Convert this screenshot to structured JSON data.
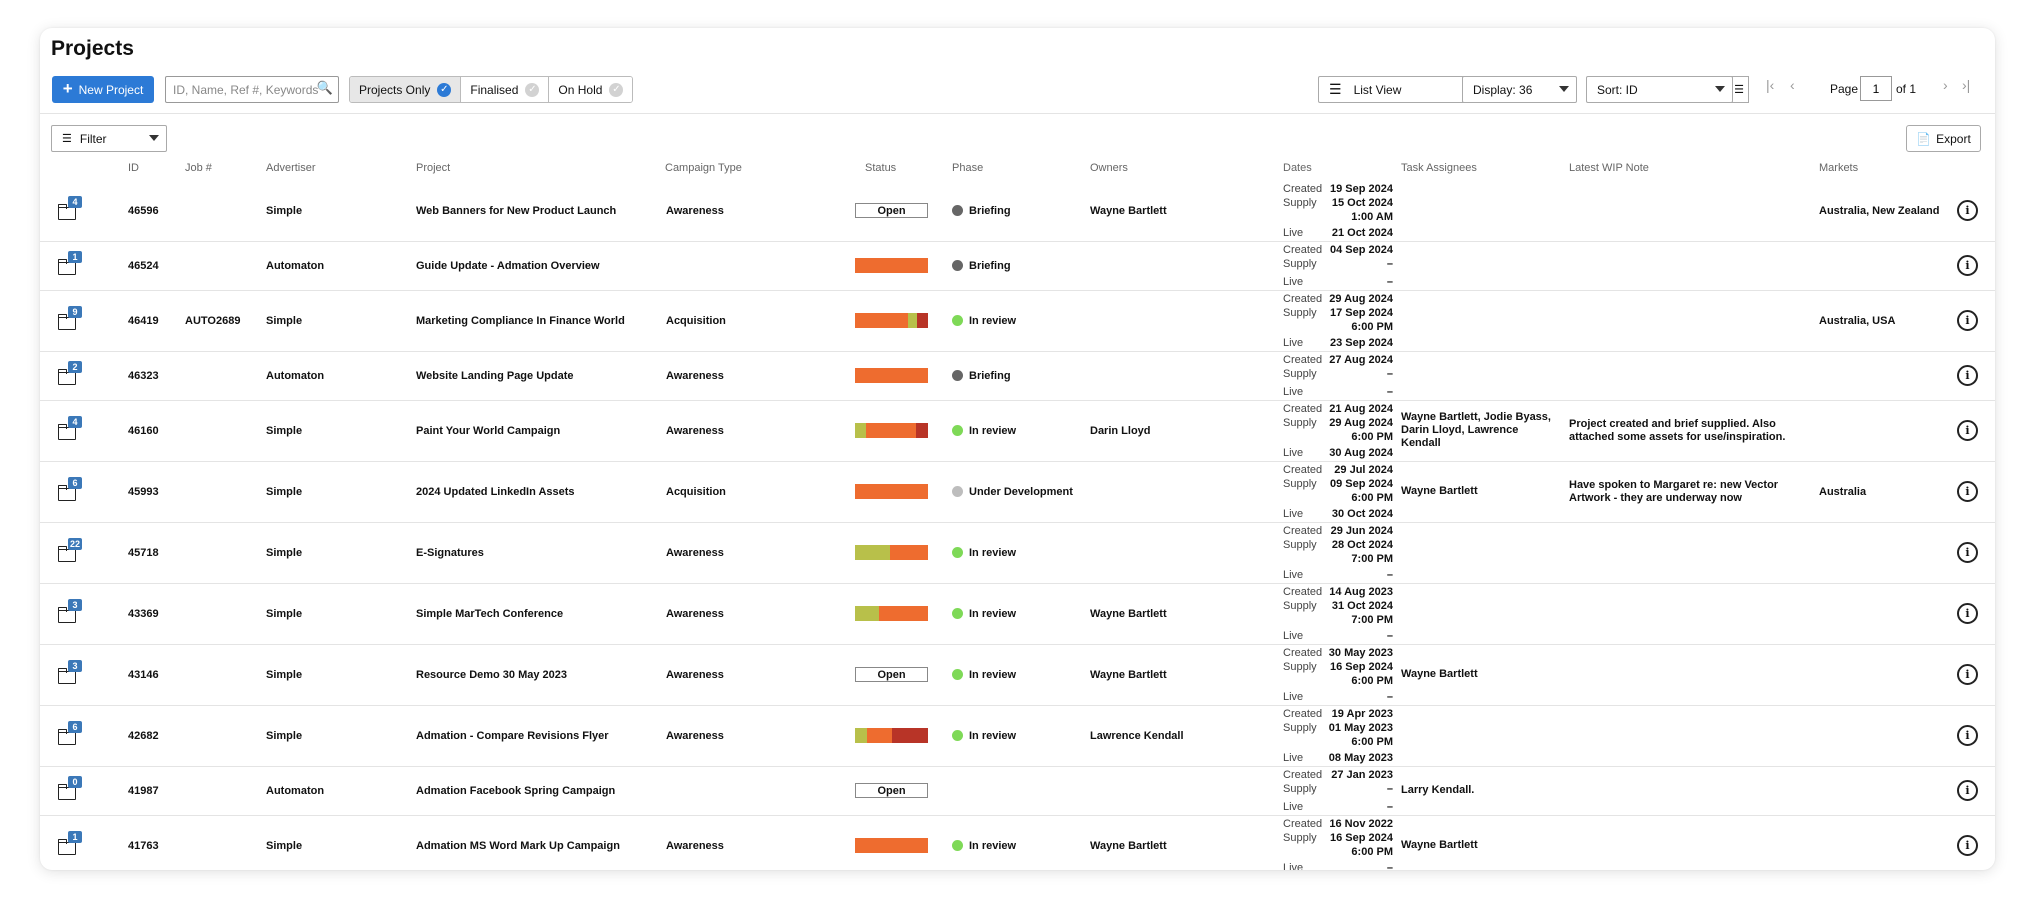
{
  "header": {
    "title": "Projects"
  },
  "toolbar": {
    "new_project_label": "New Project",
    "search_placeholder": "ID, Name, Ref #, Keywords",
    "filters": [
      {
        "label": "Projects Only",
        "active": true
      },
      {
        "label": "Finalised",
        "active": false
      },
      {
        "label": "On Hold",
        "active": false
      }
    ],
    "view_select": "List View",
    "display_select": "Display: 36",
    "sort_select": "Sort: ID",
    "page_label": "Page",
    "page_value": "1",
    "page_of": "of 1",
    "filter_label": "Filter",
    "export_label": "Export"
  },
  "columns": {
    "id": "ID",
    "job": "Job #",
    "advertiser": "Advertiser",
    "project": "Project",
    "campaign": "Campaign Type",
    "status": "Status",
    "phase": "Phase",
    "owners": "Owners",
    "dates": "Dates",
    "tasks": "Task Assignees",
    "wip": "Latest WIP Note",
    "markets": "Markets"
  },
  "date_labels": {
    "created": "Created",
    "supply": "Supply",
    "live": "Live"
  },
  "colors": {
    "accent": "#2c7ad6",
    "orange": "#ee6c2f",
    "olive": "#b8c04a",
    "red": "#b83427",
    "green": "#7ed957",
    "grey_dot": "#666666",
    "light_dot": "#bdbdbd"
  },
  "rows": [
    {
      "count": "4",
      "id": "46596",
      "job": "",
      "advertiser": "Simple",
      "project": "Web Banners for New Product Launch",
      "campaign": "Awareness",
      "status": {
        "type": "open",
        "label": "Open"
      },
      "phase": {
        "label": "Briefing",
        "dot": "grey"
      },
      "owners": "Wayne Bartlett",
      "created": "19 Sep 2024",
      "supply": "15 Oct 2024",
      "supply_time": "1:00 AM",
      "live": "21 Oct 2024",
      "tasks": "",
      "wip": "",
      "markets": "Australia, New Zealand"
    },
    {
      "count": "1",
      "id": "46524",
      "job": "",
      "advertiser": "Automaton",
      "project": "Guide Update - Admation Overview",
      "campaign": "",
      "status": {
        "type": "bar",
        "segments": [
          {
            "c": "orange",
            "w": 1
          }
        ]
      },
      "phase": {
        "label": "Briefing",
        "dot": "grey"
      },
      "owners": "",
      "created": "04 Sep 2024",
      "supply": "–",
      "supply_time": "",
      "live": "–",
      "tasks": "",
      "wip": "",
      "markets": ""
    },
    {
      "count": "9",
      "id": "46419",
      "job": "AUTO2689",
      "advertiser": "Simple",
      "project": "Marketing Compliance In Finance World",
      "campaign": "Acquisition",
      "status": {
        "type": "bar",
        "segments": [
          {
            "c": "orange",
            "w": 0.72
          },
          {
            "c": "olive",
            "w": 0.13
          },
          {
            "c": "red",
            "w": 0.15
          }
        ]
      },
      "phase": {
        "label": "In review",
        "dot": "green"
      },
      "owners": "",
      "created": "29 Aug 2024",
      "supply": "17 Sep 2024",
      "supply_time": "6:00 PM",
      "live": "23 Sep 2024",
      "tasks": "",
      "wip": "",
      "markets": "Australia, USA"
    },
    {
      "count": "2",
      "id": "46323",
      "job": "",
      "advertiser": "Automaton",
      "project": "Website Landing Page Update",
      "campaign": "Awareness",
      "status": {
        "type": "bar",
        "segments": [
          {
            "c": "orange",
            "w": 1
          }
        ]
      },
      "phase": {
        "label": "Briefing",
        "dot": "grey"
      },
      "owners": "",
      "created": "27 Aug 2024",
      "supply": "–",
      "supply_time": "",
      "live": "–",
      "tasks": "",
      "wip": "",
      "markets": ""
    },
    {
      "count": "4",
      "id": "46160",
      "job": "",
      "advertiser": "Simple",
      "project": "Paint Your World Campaign",
      "campaign": "Awareness",
      "status": {
        "type": "bar",
        "segments": [
          {
            "c": "olive",
            "w": 0.15
          },
          {
            "c": "orange",
            "w": 0.68
          },
          {
            "c": "red",
            "w": 0.17
          }
        ]
      },
      "phase": {
        "label": "In review",
        "dot": "green"
      },
      "owners": "Darin Lloyd",
      "created": "21 Aug 2024",
      "supply": "29 Aug 2024",
      "supply_time": "6:00 PM",
      "live": "30 Aug 2024",
      "tasks": "Wayne Bartlett, Jodie Byass, Darin Lloyd, Lawrence Kendall",
      "wip": "Project created and brief supplied. Also attached some assets for use/inspiration.",
      "markets": ""
    },
    {
      "count": "6",
      "id": "45993",
      "job": "",
      "advertiser": "Simple",
      "project": "2024 Updated LinkedIn Assets",
      "campaign": "Acquisition",
      "status": {
        "type": "bar",
        "segments": [
          {
            "c": "orange",
            "w": 1
          }
        ]
      },
      "phase": {
        "label": "Under Development",
        "dot": "light"
      },
      "owners": "",
      "created": "29 Jul 2024",
      "supply": "09 Sep 2024",
      "supply_time": "6:00 PM",
      "live": "30 Oct 2024",
      "tasks": "Wayne Bartlett",
      "wip": "Have spoken to Margaret re: new Vector Artwork - they are underway now",
      "markets": "Australia"
    },
    {
      "count": "22",
      "id": "45718",
      "job": "",
      "advertiser": "Simple",
      "project": "E-Signatures",
      "campaign": "Awareness",
      "status": {
        "type": "bar",
        "segments": [
          {
            "c": "olive",
            "w": 0.48
          },
          {
            "c": "orange",
            "w": 0.52
          }
        ]
      },
      "phase": {
        "label": "In review",
        "dot": "green"
      },
      "owners": "",
      "created": "29 Jun 2024",
      "supply": "28 Oct 2024",
      "supply_time": "7:00 PM",
      "live": "–",
      "tasks": "",
      "wip": "",
      "markets": ""
    },
    {
      "count": "3",
      "id": "43369",
      "job": "",
      "advertiser": "Simple",
      "project": "Simple MarTech Conference",
      "campaign": "Awareness",
      "status": {
        "type": "bar",
        "segments": [
          {
            "c": "olive",
            "w": 0.33
          },
          {
            "c": "orange",
            "w": 0.67
          }
        ]
      },
      "phase": {
        "label": "In review",
        "dot": "green"
      },
      "owners": "Wayne Bartlett",
      "created": "14 Aug 2023",
      "supply": "31 Oct 2024",
      "supply_time": "7:00 PM",
      "live": "–",
      "tasks": "",
      "wip": "",
      "markets": ""
    },
    {
      "count": "3",
      "id": "43146",
      "job": "",
      "advertiser": "Simple",
      "project": "Resource Demo 30 May 2023",
      "campaign": "Awareness",
      "status": {
        "type": "open",
        "label": "Open"
      },
      "phase": {
        "label": "In review",
        "dot": "green"
      },
      "owners": "Wayne Bartlett",
      "created": "30 May 2023",
      "supply": "16 Sep 2024",
      "supply_time": "6:00 PM",
      "live": "–",
      "tasks": "Wayne Bartlett",
      "wip": "",
      "markets": ""
    },
    {
      "count": "6",
      "id": "42682",
      "job": "",
      "advertiser": "Simple",
      "project": "Admation - Compare Revisions Flyer",
      "campaign": "Awareness",
      "status": {
        "type": "bar",
        "segments": [
          {
            "c": "olive",
            "w": 0.17
          },
          {
            "c": "orange",
            "w": 0.33
          },
          {
            "c": "red",
            "w": 0.5
          }
        ]
      },
      "phase": {
        "label": "In review",
        "dot": "green"
      },
      "owners": "Lawrence Kendall",
      "created": "19 Apr 2023",
      "supply": "01 May 2023",
      "supply_time": "6:00 PM",
      "live": "08 May 2023",
      "tasks": "",
      "wip": "",
      "markets": ""
    },
    {
      "count": "0",
      "id": "41987",
      "job": "",
      "advertiser": "Automaton",
      "project": "Admation Facebook Spring Campaign",
      "campaign": "",
      "status": {
        "type": "open",
        "label": "Open"
      },
      "phase": {
        "label": "",
        "dot": ""
      },
      "owners": "",
      "created": "27 Jan 2023",
      "supply": "–",
      "supply_time": "",
      "live": "–",
      "tasks": "Larry Kendall.",
      "wip": "",
      "markets": ""
    },
    {
      "count": "1",
      "id": "41763",
      "job": "",
      "advertiser": "Simple",
      "project": "Admation MS Word Mark Up Campaign",
      "campaign": "Awareness",
      "status": {
        "type": "bar",
        "segments": [
          {
            "c": "orange",
            "w": 1
          }
        ]
      },
      "phase": {
        "label": "In review",
        "dot": "green"
      },
      "owners": "Wayne Bartlett",
      "created": "16 Nov 2022",
      "supply": "16 Sep 2024",
      "supply_time": "6:00 PM",
      "live": "–",
      "tasks": "Wayne Bartlett",
      "wip": "",
      "markets": ""
    }
  ]
}
